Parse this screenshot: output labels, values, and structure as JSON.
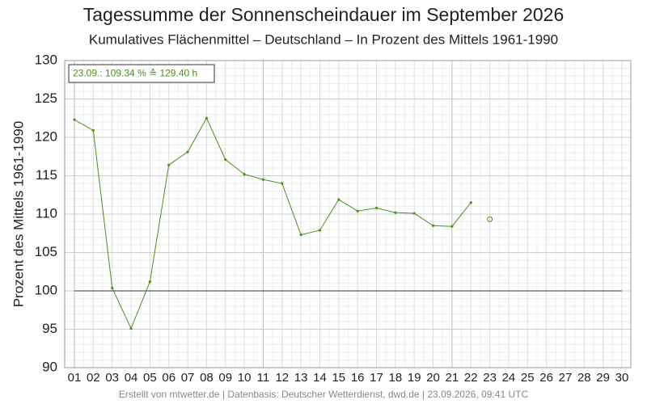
{
  "chart_data": {
    "type": "line",
    "title": "Tagessumme der Sonnenscheindauer im September 2026",
    "subtitle": "Kumulatives Flächenmittel – Deutschland – In Prozent des Mittels 1961-1990",
    "y_label": "Prozent des Mittels 1961-1990",
    "footer": "Erstellt von mtwetter.de | Datenbasis: Deutscher Wetterdienst, dwd.de | 23.09.2026, 09:41 UTC",
    "categories": [
      "01",
      "02",
      "03",
      "04",
      "05",
      "06",
      "07",
      "08",
      "09",
      "10",
      "11",
      "12",
      "13",
      "14",
      "15",
      "16",
      "17",
      "18",
      "19",
      "20",
      "21",
      "22",
      "23",
      "24",
      "25",
      "26",
      "27",
      "28",
      "29",
      "30"
    ],
    "series": [
      {
        "color": "#4a8f1c",
        "values": [
          122.3,
          120.9,
          100.4,
          95.1,
          101.2,
          116.4,
          118.1,
          122.5,
          117.1,
          115.2,
          114.5,
          114.0,
          107.3,
          107.9,
          111.9,
          110.4,
          110.8,
          110.2,
          110.1,
          108.5,
          108.4,
          111.5,
          null,
          null,
          null,
          null,
          null,
          null,
          null,
          null
        ]
      }
    ],
    "current_point": {
      "category_index": 22,
      "value": 109.34,
      "label": "23.09.: 109.34 % ≙ 129.40 h"
    },
    "reference_line": 100,
    "ylim": [
      90,
      130
    ],
    "yticks": [
      90,
      95,
      100,
      105,
      110,
      115,
      120,
      125,
      130
    ],
    "grid": true
  }
}
